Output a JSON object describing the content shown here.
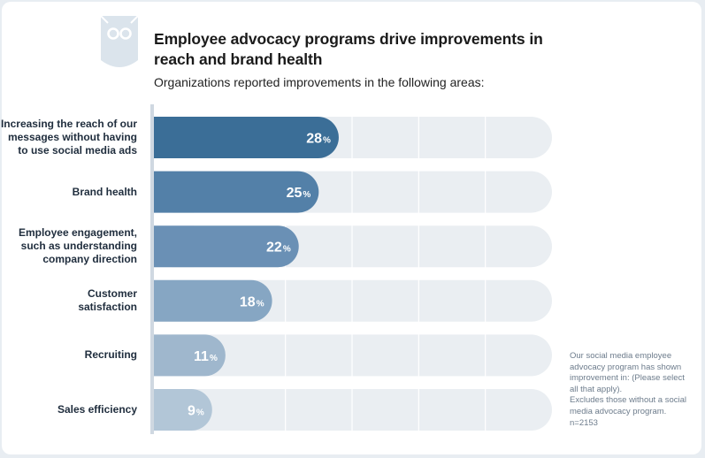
{
  "title": "Employee advocacy programs drive improvements in reach and brand health",
  "subtitle": "Organizations reported improvements in the following areas:",
  "note": {
    "line1": "Our social media employee advocacy program has shown improvement in: (Please select all that apply).",
    "line2": "Excludes those without a social media advocacy program.",
    "line3": "n=2153"
  },
  "colors": {
    "track": "#eaeef2",
    "axis": "#cfd8e1",
    "bars": [
      "#3b6e97",
      "#5380a8",
      "#6a90b5",
      "#86a6c3",
      "#9fb7cd",
      "#b2c6d7"
    ]
  },
  "chart_data": {
    "type": "bar",
    "orientation": "horizontal",
    "categories": [
      "Increasing the reach of our messages without having to use social media ads",
      "Brand health",
      "Employee engagement, such as understanding company direction",
      "Customer satisfaction",
      "Recruiting",
      "Sales efficiency"
    ],
    "category_lines": [
      [
        "Increasing the reach of our",
        "messages without having",
        "to use social media ads"
      ],
      [
        "Brand health"
      ],
      [
        "Employee engagement,",
        "such as understanding",
        "company direction"
      ],
      [
        "Customer",
        "satisfaction"
      ],
      [
        "Recruiting"
      ],
      [
        "Sales efficiency"
      ]
    ],
    "values": [
      28,
      25,
      22,
      18,
      11,
      9
    ],
    "value_labels": [
      "28",
      "25",
      "22",
      "18",
      "11",
      "9"
    ],
    "unit": "%",
    "xlim": [
      0,
      60
    ],
    "grid": true
  }
}
